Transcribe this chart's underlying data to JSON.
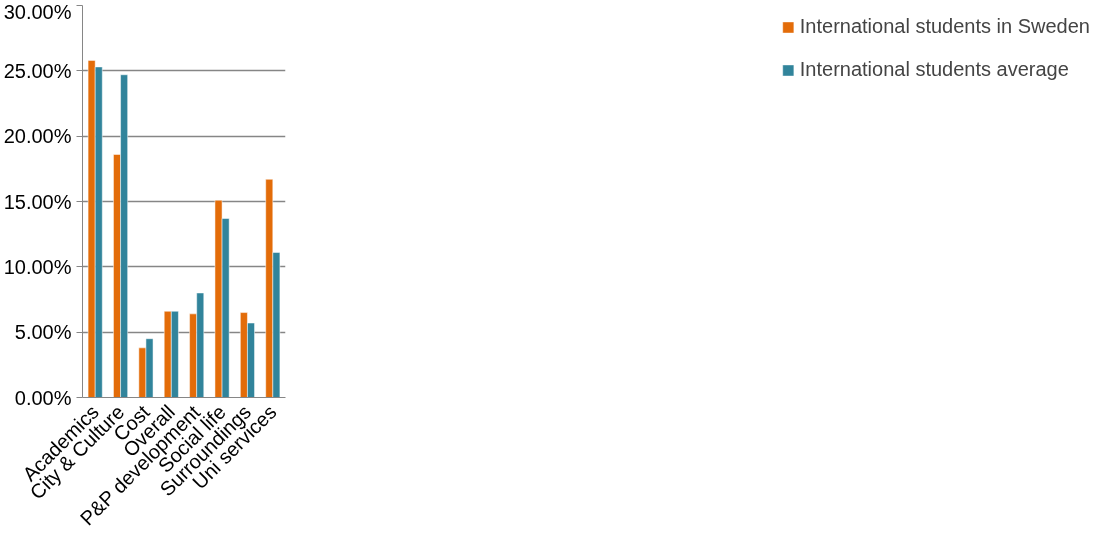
{
  "chart_data": {
    "type": "bar",
    "categories": [
      "Academics",
      "City & Culture",
      "Cost",
      "Overall",
      "P&P development",
      "Social life",
      "Surroundings",
      "Uni services"
    ],
    "series": [
      {
        "name": "International students in Sweden",
        "color": "#e36c09",
        "values": [
          25.8,
          18.6,
          3.8,
          6.6,
          6.4,
          15.1,
          6.5,
          16.7
        ]
      },
      {
        "name": "International students average",
        "color": "#31849b",
        "values": [
          25.3,
          24.7,
          4.5,
          6.6,
          8.0,
          13.7,
          5.7,
          11.1
        ]
      }
    ],
    "ylim": [
      0,
      30
    ],
    "yticks": [
      {
        "value": 0,
        "label": "0.00%"
      },
      {
        "value": 5,
        "label": "5.00%"
      },
      {
        "value": 10,
        "label": "10.00%"
      },
      {
        "value": 15,
        "label": "15.00%"
      },
      {
        "value": 20,
        "label": "20.00%"
      },
      {
        "value": 25,
        "label": "25.00%"
      },
      {
        "value": 30,
        "label": "30.00%"
      }
    ],
    "grid": "y",
    "legend": "right"
  }
}
